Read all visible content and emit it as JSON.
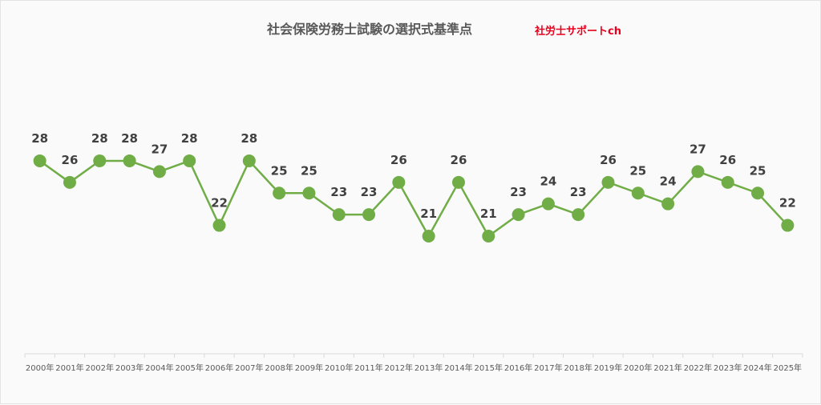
{
  "brand": "社労士サポートch",
  "chart_data": {
    "type": "line",
    "title": "社会保険労務士試験の選択式基準点",
    "categories": [
      "2000年",
      "2001年",
      "2002年",
      "2003年",
      "2004年",
      "2005年",
      "2006年",
      "2007年",
      "2008年",
      "2009年",
      "2010年",
      "2011年",
      "2012年",
      "2013年",
      "2014年",
      "2015年",
      "2016年",
      "2017年",
      "2018年",
      "2019年",
      "2020年",
      "2021年",
      "2022年",
      "2023年",
      "2024年",
      "2025年"
    ],
    "values": [
      28,
      26,
      28,
      28,
      27,
      28,
      22,
      28,
      25,
      25,
      23,
      23,
      26,
      21,
      26,
      21,
      23,
      24,
      23,
      26,
      25,
      24,
      27,
      26,
      25,
      22
    ],
    "xlabel": "",
    "ylabel": "",
    "ylim": [
      4,
      34
    ],
    "grid": false,
    "legend": "none",
    "color": "#70ad47"
  }
}
